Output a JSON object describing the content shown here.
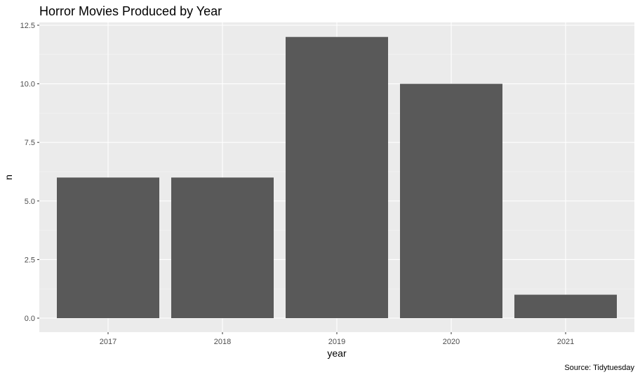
{
  "chart_data": {
    "type": "bar",
    "title": "Horror Movies Produced by Year",
    "xlabel": "year",
    "ylabel": "n",
    "caption": "Source: Tidytuesday",
    "categories": [
      "2017",
      "2018",
      "2019",
      "2020",
      "2021"
    ],
    "values": [
      6,
      6,
      12,
      10,
      1
    ],
    "ylim": [
      -0.0,
      12.5
    ],
    "yticks": [
      "0.0",
      "2.5",
      "5.0",
      "7.5",
      "10.0",
      "12.5"
    ],
    "grid": true,
    "legend": "none",
    "colors": {
      "bar": "#595959",
      "panel": "#ebebeb",
      "grid_major": "#ffffff"
    }
  }
}
